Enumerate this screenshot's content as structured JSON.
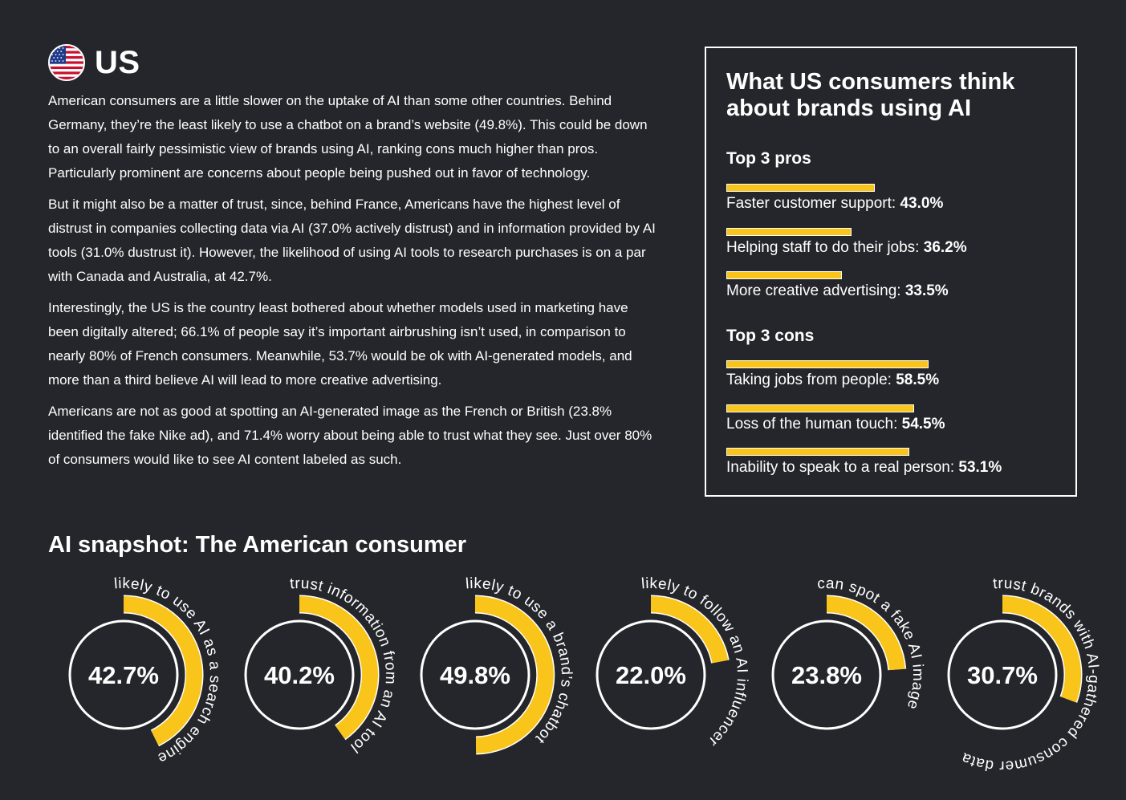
{
  "header": {
    "country": "US",
    "flag_icon": "us-flag-icon"
  },
  "body_paragraphs": [
    "American consumers are a little slower on the uptake of AI than some other countries. Behind Germany, they’re the least likely to use a chatbot on a brand’s website (49.8%). This could be down to an overall fairly pessimistic view of brands using AI, ranking cons much higher than pros. Particularly prominent are concerns about people being pushed out in favor of technology.",
    "But it might also be a matter of trust, since, behind France, Americans have the highest level of distrust in companies collecting data via AI (37.0% actively distrust) and in information provided by AI tools (31.0% dustrust it). However, the likelihood of using AI tools to research purchases is on a par with Canada and Australia, at 42.7%.",
    "Interestingly, the US is the country least bothered about whether models used in marketing have been digitally altered; 66.1% of people say it’s important airbrushing isn’t used, in comparison to nearly 80% of French consumers. Meanwhile, 53.7% would be ok with AI-generated models, and more than a third believe AI will lead to more creative advertising.",
    "Americans are not as good at spotting an AI-generated image as the French or British (23.8% identified the fake Nike ad), and 71.4% worry about being able to trust what they see. Just over 80% of consumers would like to see AI content labeled as such."
  ],
  "panel": {
    "title": "What US consumers think about brands using AI",
    "pros_heading": "Top 3 pros",
    "cons_heading": "Top 3 cons",
    "bar_color": "#f9c51a",
    "pros": [
      {
        "label": "Faster customer support: ",
        "value_text": "43.0%",
        "value": 43.0
      },
      {
        "label": "Helping staff to do their jobs: ",
        "value_text": "36.2%",
        "value": 36.2
      },
      {
        "label": "More creative advertising: ",
        "value_text": "33.5%",
        "value": 33.5
      }
    ],
    "cons": [
      {
        "label": "Taking jobs from people: ",
        "value_text": "58.5%",
        "value": 58.5
      },
      {
        "label": "Loss of the human touch: ",
        "value_text": "54.5%",
        "value": 54.5
      },
      {
        "label": "Inability to speak to a real person: ",
        "value_text": "53.1%",
        "value": 53.1
      }
    ]
  },
  "snapshot": {
    "title": "AI snapshot: The American consumer",
    "accent_color": "#f9c51a",
    "gauges": [
      {
        "value_text": "42.7%",
        "value": 42.7,
        "caption": "likely to use AI as a search engine"
      },
      {
        "value_text": "40.2%",
        "value": 40.2,
        "caption": "trust information from an AI tool"
      },
      {
        "value_text": "49.8%",
        "value": 49.8,
        "caption": "likely to use a brand’s chatbot"
      },
      {
        "value_text": "22.0%",
        "value": 22.0,
        "caption": "likely to follow an AI influencer"
      },
      {
        "value_text": "23.8%",
        "value": 23.8,
        "caption": "can spot a fake AI image"
      },
      {
        "value_text": "30.7%",
        "value": 30.7,
        "caption": "trust brands with AI-gathered consumer data"
      }
    ]
  }
}
